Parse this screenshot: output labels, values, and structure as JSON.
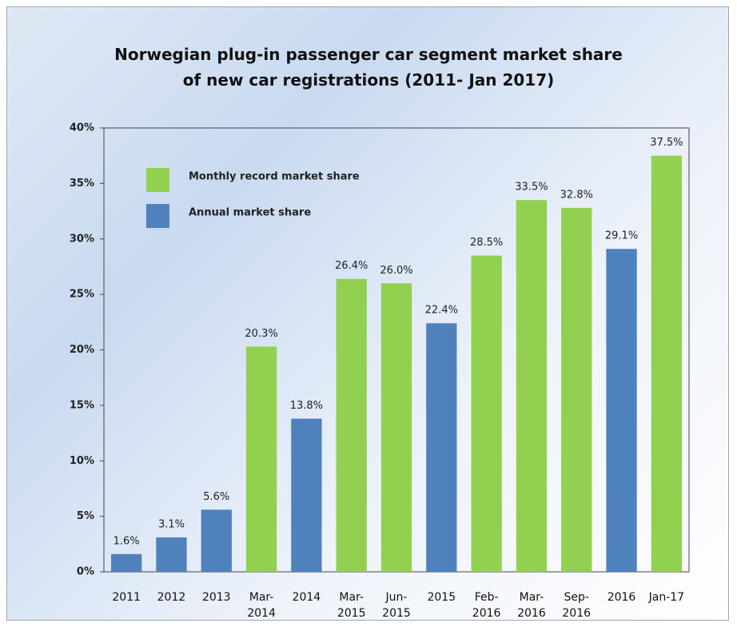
{
  "chart_data": {
    "type": "bar",
    "title": "Norwegian plug-in passenger car segment market share\nof new car registrations  (2011- Jan 2017)",
    "categories": [
      "2011",
      "2012",
      "2013",
      "Mar-\n2014",
      "2014",
      "Mar-\n2015",
      "Jun-\n2015",
      "2015",
      "Feb-\n2016",
      "Mar-\n2016",
      "Sep-\n2016",
      "2016",
      "Jan-17"
    ],
    "series": [
      {
        "name": "Monthly record market share",
        "color": "#92d050",
        "values": [
          null,
          null,
          null,
          20.3,
          null,
          26.4,
          26.0,
          null,
          28.5,
          33.5,
          32.8,
          null,
          37.5
        ],
        "value_labels": [
          null,
          null,
          null,
          "20.3%",
          null,
          "26.4%",
          "26.0%",
          null,
          "28.5%",
          "33.5%",
          "32.8%",
          null,
          "37.5%"
        ]
      },
      {
        "name": "Annual market share",
        "color": "#4f81bd",
        "values": [
          1.6,
          3.1,
          5.6,
          null,
          13.8,
          null,
          null,
          22.4,
          null,
          null,
          null,
          29.1,
          null
        ],
        "value_labels": [
          "1.6%",
          "3.1%",
          "5.6%",
          null,
          "13.8%",
          null,
          null,
          "22.4%",
          null,
          null,
          null,
          "29.1%",
          null
        ]
      }
    ],
    "ylim": [
      0,
      40
    ],
    "yticks": [
      {
        "value": 0,
        "label": "0%"
      },
      {
        "value": 5,
        "label": "5%"
      },
      {
        "value": 10,
        "label": "10%"
      },
      {
        "value": 15,
        "label": "15%"
      },
      {
        "value": 20,
        "label": "20%"
      },
      {
        "value": 25,
        "label": "25%"
      },
      {
        "value": 30,
        "label": "30%"
      },
      {
        "value": 35,
        "label": "35%"
      },
      {
        "value": 40,
        "label": "40%"
      }
    ],
    "grid": false
  }
}
